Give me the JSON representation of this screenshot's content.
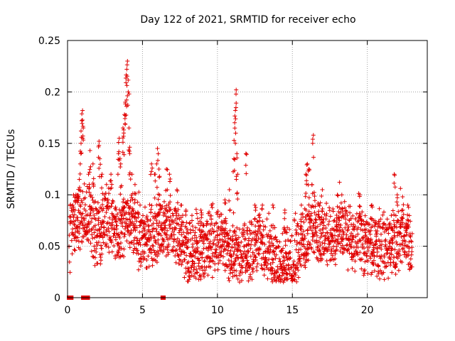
{
  "chart_data": {
    "type": "scatter",
    "title": "Day 122 of 2021, SRMTID for receiver echo",
    "xlabel": "GPS time / hours",
    "ylabel": "SRMTID / TECUs",
    "xlim": [
      0,
      24
    ],
    "ylim": [
      0,
      0.25
    ],
    "x_ticks": [
      0,
      5,
      10,
      15,
      20
    ],
    "y_ticks": [
      0,
      0.05,
      0.1,
      0.15,
      0.2,
      0.25
    ],
    "x_tick_labels": [
      "0",
      "5",
      "10",
      "15",
      "20"
    ],
    "y_tick_labels": [
      "0",
      "0.05",
      "0.1",
      "0.15",
      "0.2",
      "0.25"
    ],
    "grid": true,
    "marker": "+",
    "color": "#e00000",
    "baseline_segments": [
      [
        0.05,
        0.3
      ],
      [
        1.0,
        1.4
      ],
      [
        6.3,
        6.45
      ]
    ],
    "trend": [
      [
        0.0,
        0.055
      ],
      [
        0.5,
        0.07
      ],
      [
        1.0,
        0.08
      ],
      [
        1.5,
        0.075
      ],
      [
        2.0,
        0.06
      ],
      [
        2.5,
        0.075
      ],
      [
        3.0,
        0.07
      ],
      [
        3.5,
        0.06
      ],
      [
        4.0,
        0.075
      ],
      [
        4.5,
        0.065
      ],
      [
        5.0,
        0.055
      ],
      [
        5.5,
        0.06
      ],
      [
        6.0,
        0.065
      ],
      [
        6.5,
        0.07
      ],
      [
        7.0,
        0.065
      ],
      [
        7.5,
        0.055
      ],
      [
        8.0,
        0.04
      ],
      [
        8.5,
        0.045
      ],
      [
        9.0,
        0.05
      ],
      [
        9.5,
        0.05
      ],
      [
        10.0,
        0.055
      ],
      [
        10.5,
        0.05
      ],
      [
        11.0,
        0.04
      ],
      [
        11.5,
        0.04
      ],
      [
        12.0,
        0.045
      ],
      [
        12.5,
        0.05
      ],
      [
        13.0,
        0.055
      ],
      [
        13.5,
        0.04
      ],
      [
        14.0,
        0.035
      ],
      [
        14.5,
        0.035
      ],
      [
        15.0,
        0.035
      ],
      [
        15.5,
        0.045
      ],
      [
        16.0,
        0.065
      ],
      [
        16.5,
        0.07
      ],
      [
        17.0,
        0.06
      ],
      [
        17.5,
        0.06
      ],
      [
        18.0,
        0.06
      ],
      [
        18.5,
        0.065
      ],
      [
        19.0,
        0.055
      ],
      [
        19.5,
        0.06
      ],
      [
        20.0,
        0.05
      ],
      [
        20.5,
        0.055
      ],
      [
        21.0,
        0.05
      ],
      [
        21.5,
        0.05
      ],
      [
        22.0,
        0.055
      ],
      [
        22.5,
        0.06
      ],
      [
        23.0,
        0.055
      ]
    ],
    "spikes": [
      [
        0.35,
        0.09
      ],
      [
        0.5,
        0.085
      ],
      [
        0.7,
        0.1
      ],
      [
        0.85,
        0.13
      ],
      [
        0.9,
        0.15
      ],
      [
        0.95,
        0.172
      ],
      [
        1.0,
        0.182
      ],
      [
        1.05,
        0.165
      ],
      [
        1.4,
        0.12
      ],
      [
        1.5,
        0.143
      ],
      [
        1.7,
        0.13
      ],
      [
        2.1,
        0.152
      ],
      [
        2.15,
        0.135
      ],
      [
        2.3,
        0.12
      ],
      [
        2.6,
        0.11
      ],
      [
        2.9,
        0.12
      ],
      [
        3.4,
        0.14
      ],
      [
        3.45,
        0.155
      ],
      [
        3.55,
        0.13
      ],
      [
        3.7,
        0.165
      ],
      [
        3.75,
        0.16
      ],
      [
        3.8,
        0.178
      ],
      [
        3.85,
        0.19
      ],
      [
        3.9,
        0.209
      ],
      [
        3.95,
        0.222
      ],
      [
        4.0,
        0.23
      ],
      [
        4.05,
        0.2
      ],
      [
        4.1,
        0.165
      ],
      [
        4.15,
        0.14
      ],
      [
        4.3,
        0.12
      ],
      [
        4.5,
        0.11
      ],
      [
        5.6,
        0.13
      ],
      [
        5.8,
        0.12
      ],
      [
        6.0,
        0.145
      ],
      [
        6.1,
        0.125
      ],
      [
        6.6,
        0.125
      ],
      [
        6.8,
        0.12
      ],
      [
        7.3,
        0.105
      ],
      [
        7.6,
        0.09
      ],
      [
        7.9,
        0.085
      ],
      [
        8.3,
        0.08
      ],
      [
        8.9,
        0.085
      ],
      [
        9.6,
        0.09
      ],
      [
        10.5,
        0.095
      ],
      [
        10.8,
        0.105
      ],
      [
        11.1,
        0.135
      ],
      [
        11.15,
        0.17
      ],
      [
        11.2,
        0.182
      ],
      [
        11.25,
        0.202
      ],
      [
        11.3,
        0.14
      ],
      [
        11.35,
        0.12
      ],
      [
        11.9,
        0.14
      ],
      [
        12.5,
        0.09
      ],
      [
        13.0,
        0.09
      ],
      [
        13.7,
        0.09
      ],
      [
        14.5,
        0.085
      ],
      [
        15.6,
        0.09
      ],
      [
        15.9,
        0.12
      ],
      [
        16.0,
        0.13
      ],
      [
        16.1,
        0.125
      ],
      [
        16.3,
        0.11
      ],
      [
        16.4,
        0.158
      ],
      [
        17.0,
        0.105
      ],
      [
        18.0,
        0.1
      ],
      [
        18.3,
        0.1
      ],
      [
        19.5,
        0.1
      ],
      [
        20.3,
        0.09
      ],
      [
        21.6,
        0.08
      ],
      [
        21.8,
        0.12
      ],
      [
        22.0,
        0.1
      ],
      [
        22.3,
        0.085
      ],
      [
        22.7,
        0.09
      ]
    ]
  }
}
